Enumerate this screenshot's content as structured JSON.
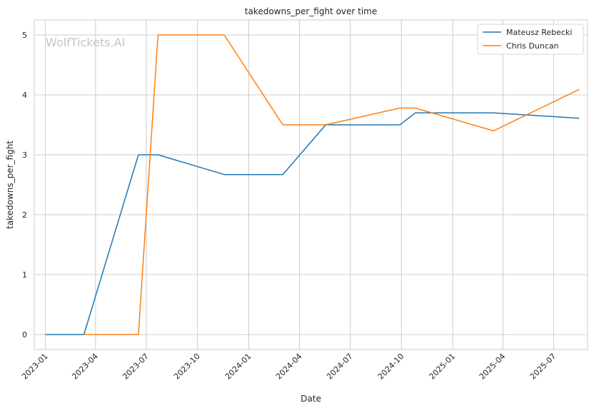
{
  "chart_data": {
    "type": "line",
    "title": "takedowns_per_fight over time",
    "xlabel": "Date",
    "ylabel": "takedowns_per_fight",
    "watermark": "WolfTickets.AI",
    "x_ticks": [
      "2023-01",
      "2023-04",
      "2023-07",
      "2023-10",
      "2024-01",
      "2024-04",
      "2024-07",
      "2024-10",
      "2025-01",
      "2025-04",
      "2025-07"
    ],
    "y_ticks": [
      0,
      1,
      2,
      3,
      4,
      5
    ],
    "xlim": [
      "2022-12-12",
      "2025-08-31"
    ],
    "ylim": [
      -0.25,
      5.25
    ],
    "grid": true,
    "legend_position": "upper right",
    "series": [
      {
        "name": "Mateusz Rebecki",
        "color": "#1f77b4",
        "points": [
          {
            "x": "2023-01-01",
            "y": 0.0
          },
          {
            "x": "2023-03-11",
            "y": 0.0
          },
          {
            "x": "2023-06-17",
            "y": 3.0
          },
          {
            "x": "2023-07-22",
            "y": 3.0
          },
          {
            "x": "2023-11-18",
            "y": 2.67
          },
          {
            "x": "2024-03-02",
            "y": 2.67
          },
          {
            "x": "2024-05-18",
            "y": 3.5
          },
          {
            "x": "2024-09-28",
            "y": 3.5
          },
          {
            "x": "2024-10-26",
            "y": 3.7
          },
          {
            "x": "2025-03-15",
            "y": 3.7
          },
          {
            "x": "2025-08-16",
            "y": 3.61
          }
        ]
      },
      {
        "name": "Chris Duncan",
        "color": "#ff7f0e",
        "points": [
          {
            "x": "2023-03-11",
            "y": 0.0
          },
          {
            "x": "2023-06-17",
            "y": 0.0
          },
          {
            "x": "2023-07-22",
            "y": 5.0
          },
          {
            "x": "2023-11-18",
            "y": 5.0
          },
          {
            "x": "2024-03-02",
            "y": 3.5
          },
          {
            "x": "2024-05-18",
            "y": 3.5
          },
          {
            "x": "2024-09-28",
            "y": 3.78
          },
          {
            "x": "2024-10-26",
            "y": 3.78
          },
          {
            "x": "2025-03-15",
            "y": 3.4
          },
          {
            "x": "2025-08-16",
            "y": 4.09
          }
        ]
      }
    ]
  }
}
